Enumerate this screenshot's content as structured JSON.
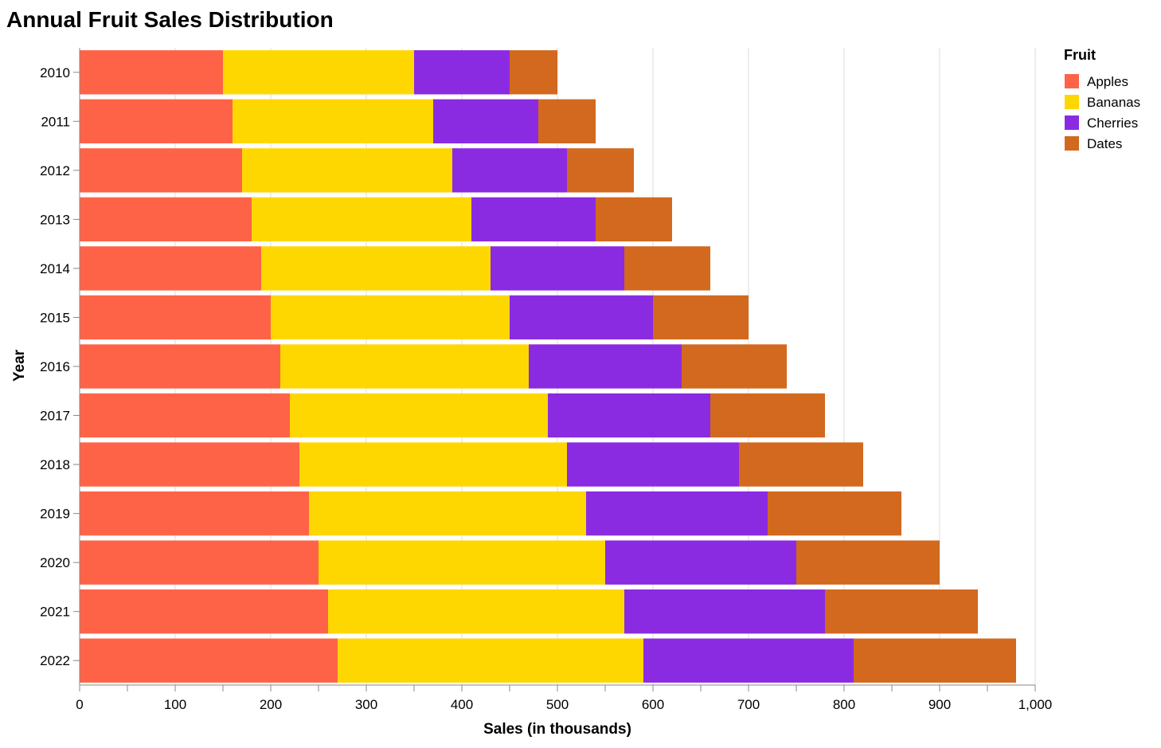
{
  "chart_data": {
    "type": "bar",
    "orientation": "horizontal",
    "stacked": true,
    "title": "Annual Fruit Sales Distribution",
    "xlabel": "Sales (in thousands)",
    "ylabel": "Year",
    "xlim": [
      0,
      1000
    ],
    "x_ticks": [
      0,
      100,
      200,
      300,
      400,
      500,
      600,
      700,
      800,
      900,
      1000
    ],
    "x_tick_labels": [
      "0",
      "100",
      "200",
      "300",
      "400",
      "500",
      "600",
      "700",
      "800",
      "900",
      "1,000"
    ],
    "grid": true,
    "legend": {
      "title": "Fruit",
      "placement": "top-right"
    },
    "categories": [
      "2010",
      "2011",
      "2012",
      "2013",
      "2014",
      "2015",
      "2016",
      "2017",
      "2018",
      "2019",
      "2020",
      "2021",
      "2022"
    ],
    "series": [
      {
        "name": "Apples",
        "color": "#ff6347",
        "values": [
          150,
          160,
          170,
          180,
          190,
          200,
          210,
          220,
          230,
          240,
          250,
          260,
          270
        ]
      },
      {
        "name": "Bananas",
        "color": "#ffd700",
        "values": [
          200,
          210,
          220,
          230,
          240,
          250,
          260,
          270,
          280,
          290,
          300,
          310,
          320
        ]
      },
      {
        "name": "Cherries",
        "color": "#8a2be2",
        "values": [
          100,
          110,
          120,
          130,
          140,
          150,
          160,
          170,
          180,
          190,
          200,
          210,
          220
        ]
      },
      {
        "name": "Dates",
        "color": "#d2691e",
        "values": [
          50,
          60,
          70,
          80,
          90,
          100,
          110,
          120,
          130,
          140,
          150,
          160,
          170
        ]
      }
    ]
  }
}
